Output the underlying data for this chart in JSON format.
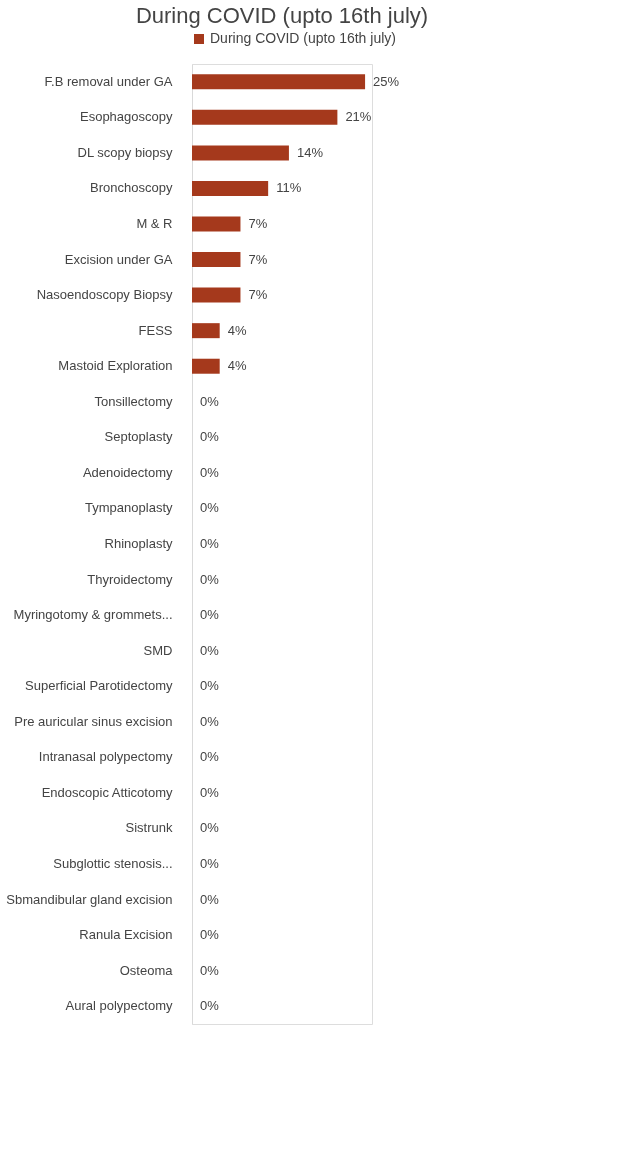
{
  "chart_data": {
    "type": "bar",
    "orientation": "horizontal",
    "title": "During COVID (upto 16th july)",
    "legend": "top",
    "categories": [
      "F.B removal under GA",
      "Esophagoscopy",
      "DL scopy  biopsy",
      "Bronchoscopy",
      "M & R",
      "Excision under GA",
      "Nasoendoscopy  Biopsy",
      "FESS",
      "Mastoid Exploration",
      "Tonsillectomy",
      "Septoplasty",
      "Adenoidectomy",
      "Tympanoplasty",
      "Rhinoplasty",
      "Thyroidectomy",
      "Myringotomy & grommets...",
      "SMD",
      "Superficial Parotidectomy",
      "Pre auricular sinus excision",
      "Intranasal polypectomy",
      "Endoscopic Atticotomy",
      "Sistrunk",
      "Subglottic stenosis...",
      "Sbmandibular gland excision",
      "Ranula Excision",
      "Osteoma",
      "Aural polypectomy"
    ],
    "series": [
      {
        "name": "During COVID (upto 16th july)",
        "color": "#a5391c",
        "values": [
          25,
          21,
          14,
          11,
          7,
          7,
          7,
          4,
          4,
          0,
          0,
          0,
          0,
          0,
          0,
          0,
          0,
          0,
          0,
          0,
          0,
          0,
          0,
          0,
          0,
          0,
          0
        ],
        "value_labels": [
          "25%",
          "21%",
          "14%",
          "11%",
          "7%",
          "7%",
          "7%",
          "4%",
          "4%",
          "0%",
          "0%",
          "0%",
          "0%",
          "0%",
          "0%",
          "0%",
          "0%",
          "0%",
          "0%",
          "0%",
          "0%",
          "0%",
          "0%",
          "0%",
          "0%",
          "0%",
          "0%"
        ]
      }
    ]
  }
}
